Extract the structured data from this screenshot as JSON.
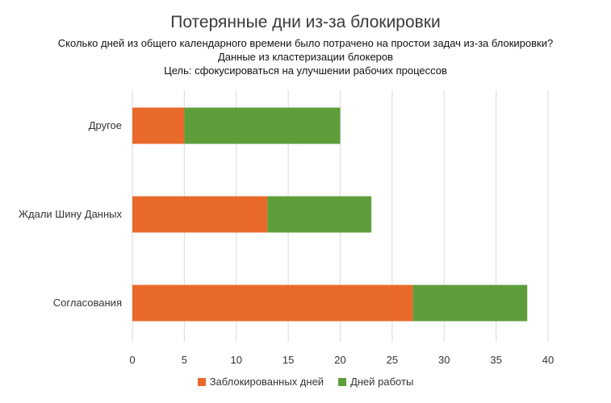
{
  "chart_data": {
    "type": "bar",
    "orientation": "horizontal",
    "stacked": true,
    "title": "Потерянные дни из-за блокировки",
    "subtitles": [
      "Сколько дней из общего календарного времени было потрачено на простои задач из-за блокировки?",
      "Данные из кластеризации блокеров",
      "Цель: сфокусироваться на улучшении рабочих процессов"
    ],
    "categories": [
      "Другое",
      "Ждали Шину Данных",
      "Согласования"
    ],
    "series": [
      {
        "name": "Заблокированных дней",
        "color": "#E8692A",
        "values": [
          5,
          13,
          27
        ]
      },
      {
        "name": "Дней работы",
        "color": "#5E9E3A",
        "values": [
          15,
          10,
          11
        ]
      }
    ],
    "xlim": [
      0,
      40
    ],
    "xticks": [
      0,
      5,
      10,
      15,
      20,
      25,
      30,
      35,
      40
    ],
    "grid": true,
    "legend": "bottom"
  }
}
